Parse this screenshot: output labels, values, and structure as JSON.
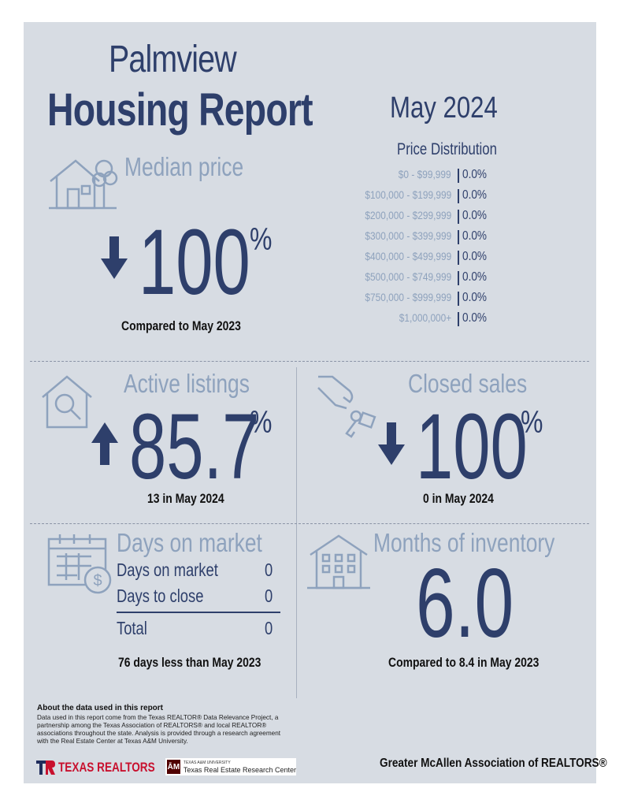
{
  "header": {
    "city": "Palmview",
    "report_title": "Housing Report",
    "month": "May 2024"
  },
  "price_distribution": {
    "title": "Price Distribution",
    "rows": [
      {
        "range": "$0 - $99,999",
        "value": "0.0%"
      },
      {
        "range": "$100,000 - $199,999",
        "value": "0.0%"
      },
      {
        "range": "$200,000 - $299,999",
        "value": "0.0%"
      },
      {
        "range": "$300,000 - $399,999",
        "value": "0.0%"
      },
      {
        "range": "$400,000 - $499,999",
        "value": "0.0%"
      },
      {
        "range": "$500,000 - $749,999",
        "value": "0.0%"
      },
      {
        "range": "$750,000 - $999,999",
        "value": "0.0%"
      },
      {
        "range": "$1,000,000+",
        "value": "0.0%"
      }
    ]
  },
  "median_price": {
    "title": "Median price",
    "direction": "down",
    "value": "100",
    "unit": "%",
    "caption": "Compared to May 2023"
  },
  "active_listings": {
    "title": "Active listings",
    "direction": "up",
    "value": "85.7",
    "unit": "%",
    "caption": "13 in May 2024"
  },
  "closed_sales": {
    "title": "Closed sales",
    "direction": "down",
    "value": "100",
    "unit": "%",
    "caption": "0 in May 2024"
  },
  "days_on_market": {
    "title": "Days on market",
    "rows": [
      {
        "label": "Days on market",
        "value": "0"
      },
      {
        "label": "Days to close",
        "value": "0"
      }
    ],
    "total_label": "Total",
    "total_value": "0",
    "caption": "76 days less than May 2023"
  },
  "months_inventory": {
    "title": "Months of inventory",
    "value": "6.0",
    "caption": "Compared to 8.4 in May 2023"
  },
  "footer": {
    "about_title": "About the data used in this report",
    "about_text": "Data used in this report come from the Texas REALTOR® Data Relevance Project, a partnership among the Texas Association of REALTORS® and local REALTOR® associations throughout the state. Analysis is provided through a research agreement with the Real Estate Center at Texas A&M University.",
    "logo_texas_realtors": "TEXAS REALTORS",
    "logo_tamu_small": "TEXAS A&M UNIVERSITY",
    "logo_tamu_main": "Texas Real Estate Research Center",
    "association": "Greater McAllen Association of REALTORS®"
  },
  "colors": {
    "navy": "#2e3f6b",
    "muted_blue": "#8ea2bd",
    "background": "#d7dce3"
  }
}
